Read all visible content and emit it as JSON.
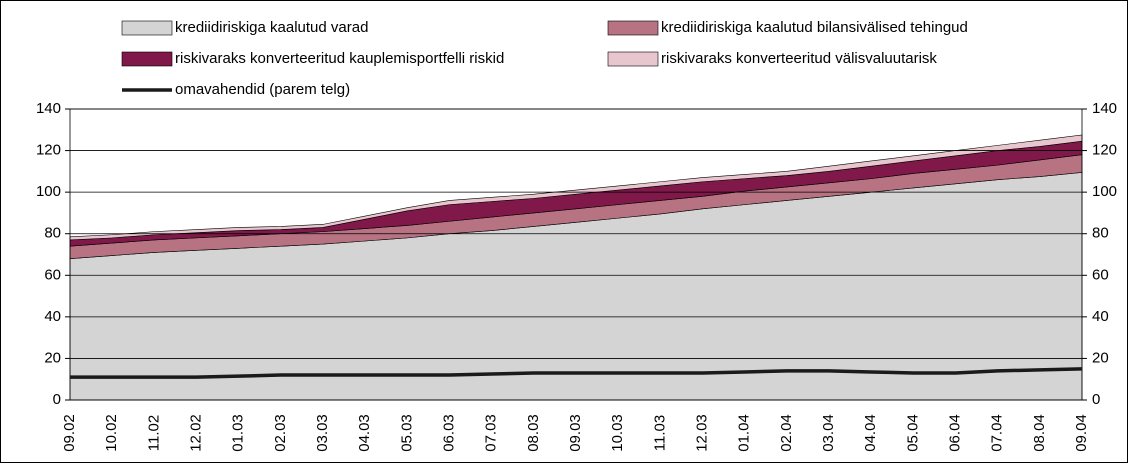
{
  "chart_data": {
    "type": "stacked-area",
    "categories": [
      "09.02",
      "10.02",
      "11.02",
      "12.02",
      "01.03",
      "02.03",
      "03.03",
      "04.03",
      "05.03",
      "06.03",
      "07.03",
      "08.03",
      "09.03",
      "10.03",
      "11.03",
      "12.03",
      "01.04",
      "02.04",
      "03.04",
      "04.04",
      "05.04",
      "06.04",
      "07.04",
      "08.04",
      "09.04"
    ],
    "series": [
      {
        "name": "krediidiriskiga kaalutud varad",
        "color": "#d4d4d4",
        "values": [
          68,
          69.5,
          71,
          72,
          73,
          74,
          75,
          76.5,
          78,
          80,
          81.5,
          83.5,
          85.5,
          87.5,
          89.5,
          92,
          94,
          96,
          98,
          100,
          102,
          104,
          106,
          107.5,
          109.5
        ]
      },
      {
        "name": "krediidiriskiga kaalutud bilansivälised tehingud",
        "color": "#b87383",
        "values": [
          6,
          6,
          6,
          6,
          6,
          6,
          6,
          6,
          6,
          6,
          6.5,
          6.5,
          6.5,
          6.5,
          6.5,
          6,
          6.5,
          6.5,
          6.5,
          6.5,
          7,
          7,
          7,
          8,
          8.5
        ]
      },
      {
        "name": "riskivaraks konverteeritud kauplemisportfelli riskid",
        "color": "#80184a",
        "values": [
          3,
          2.5,
          2.5,
          2.5,
          2.5,
          2,
          2,
          4.5,
          7,
          8,
          7.5,
          7,
          7,
          7,
          7,
          7,
          6,
          5.5,
          5.5,
          6,
          6,
          6.5,
          7,
          6.5,
          6.5
        ]
      },
      {
        "name": "riskivaraks konverteeritud välisvaluutarisk",
        "color": "#e8c6ce",
        "values": [
          1.5,
          1.5,
          1.5,
          1.5,
          1.5,
          1.5,
          1.5,
          1.5,
          1.5,
          2,
          2,
          2,
          2,
          2,
          2,
          2,
          2,
          2,
          2.5,
          2.5,
          2.5,
          2.5,
          2.5,
          3,
          3
        ]
      },
      {
        "name": "omavahendid (parem telg)",
        "color": "#1a1a1a",
        "type": "line",
        "axis": "y2",
        "values": [
          11,
          11,
          11,
          11,
          11.5,
          12,
          12,
          12,
          12,
          12,
          12.5,
          13,
          13,
          13,
          13,
          13,
          13.5,
          14,
          14,
          13.5,
          13,
          13,
          14,
          14.5,
          15
        ]
      }
    ],
    "ylim": [
      0,
      140
    ],
    "yticks": [
      0,
      20,
      40,
      60,
      80,
      100,
      120,
      140
    ],
    "y2lim": [
      0,
      140
    ],
    "y2ticks": [
      0,
      20,
      40,
      60,
      80,
      100,
      120,
      140
    ],
    "grid": true
  }
}
